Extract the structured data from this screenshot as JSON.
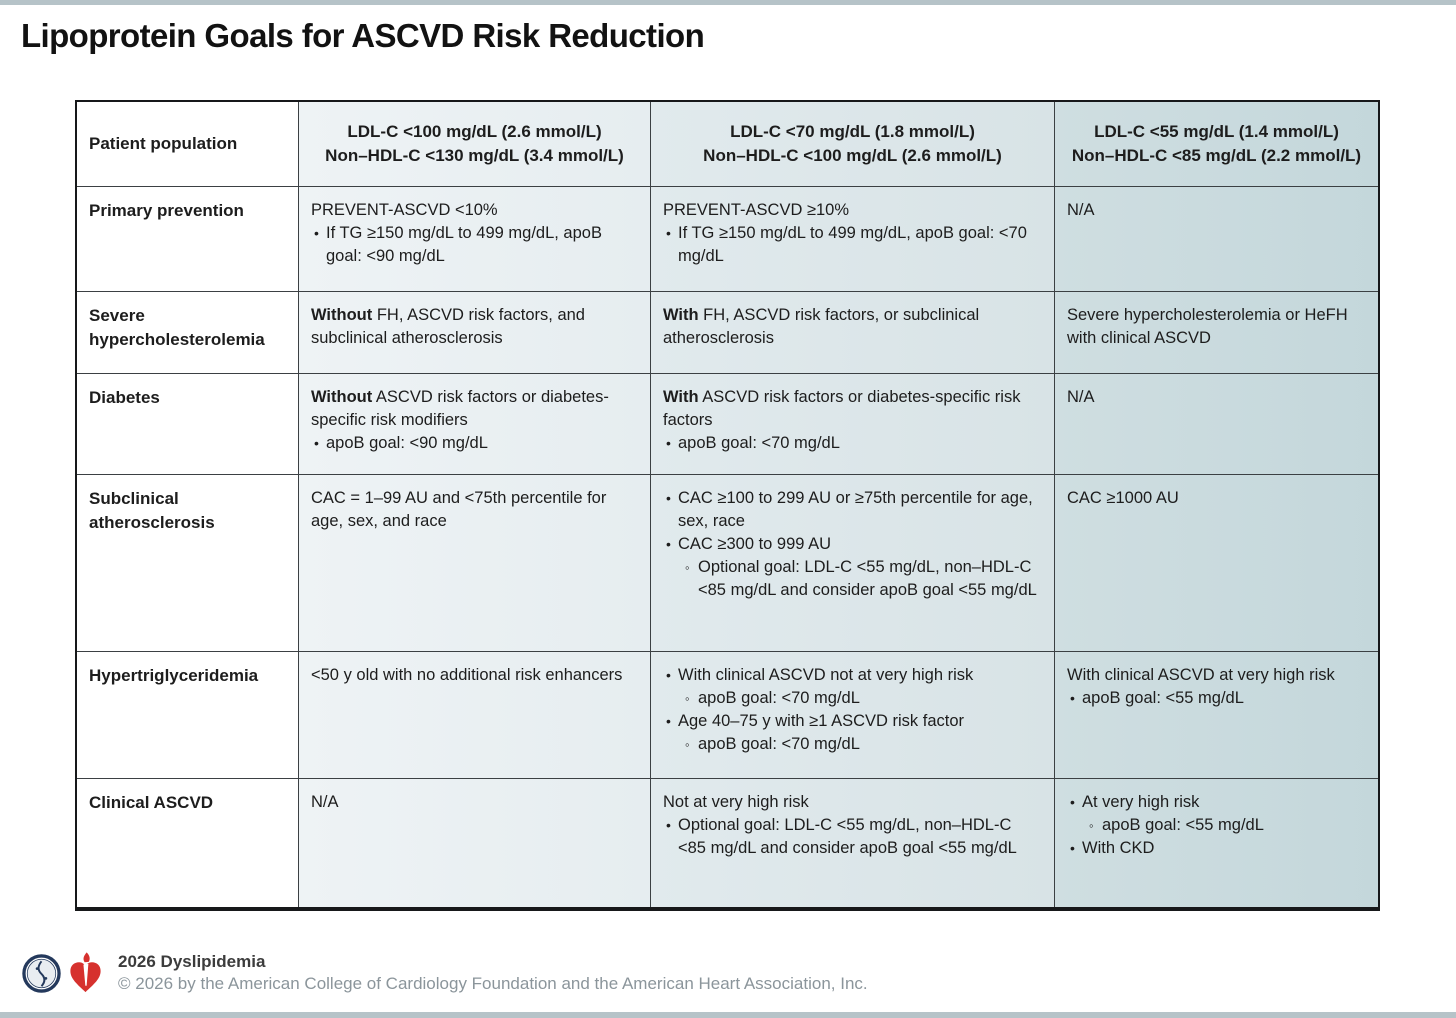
{
  "page": {
    "title": "Lipoprotein Goals for ASCVD Risk Reduction"
  },
  "table": {
    "header": {
      "patient_population": "Patient population",
      "goal_columns": [
        {
          "line1": "LDL-C <100 mg/dL (2.6 mmol/L)",
          "line2": "Non–HDL-C <130 mg/dL (3.4 mmol/L)"
        },
        {
          "line1": "LDL-C <70 mg/dL (1.8 mmol/L)",
          "line2": "Non–HDL-C <100 mg/dL (2.6 mmol/L)"
        },
        {
          "line1": "LDL-C <55 mg/dL (1.4 mmol/L)",
          "line2": "Non–HDL-C <85 mg/dL (2.2 mmol/L)"
        }
      ]
    },
    "rows": [
      {
        "label": "Primary prevention",
        "cells": [
          {
            "lines": [
              {
                "style": "plain",
                "text": "PREVENT-ASCVD <10%"
              },
              {
                "style": "bullet",
                "text": "If TG ≥150 mg/dL to 499 mg/dL, apoB goal: <90 mg/dL"
              }
            ]
          },
          {
            "lines": [
              {
                "style": "plain",
                "text": "PREVENT-ASCVD ≥10%"
              },
              {
                "style": "bullet",
                "text": "If TG ≥150 mg/dL to 499 mg/dL, apoB goal: <70 mg/dL"
              }
            ]
          },
          {
            "lines": [
              {
                "style": "plain",
                "text": "N/A"
              }
            ]
          }
        ]
      },
      {
        "label": "Severe hypercholesterolemia",
        "cells": [
          {
            "lines": [
              {
                "style": "plain",
                "bold": "Without",
                "text": " FH, ASCVD risk factors, and subclinical atherosclerosis"
              }
            ]
          },
          {
            "lines": [
              {
                "style": "plain",
                "bold": "With",
                "text": " FH, ASCVD risk factors, or subclinical atherosclerosis"
              }
            ]
          },
          {
            "lines": [
              {
                "style": "plain",
                "text": "Severe hypercholesterolemia or HeFH with clinical ASCVD"
              }
            ]
          }
        ]
      },
      {
        "label": "Diabetes",
        "cells": [
          {
            "lines": [
              {
                "style": "plain",
                "bold": "Without",
                "text": " ASCVD risk factors or diabetes-specific risk modifiers"
              },
              {
                "style": "bullet",
                "text": "apoB goal: <90 mg/dL"
              }
            ]
          },
          {
            "lines": [
              {
                "style": "plain",
                "bold": "With",
                "text": " ASCVD risk factors or diabetes-specific risk factors"
              },
              {
                "style": "bullet",
                "text": "apoB goal: <70 mg/dL"
              }
            ]
          },
          {
            "lines": [
              {
                "style": "plain",
                "text": "N/A"
              }
            ]
          }
        ]
      },
      {
        "label": "Subclinical atherosclerosis",
        "cells": [
          {
            "lines": [
              {
                "style": "plain",
                "text": "CAC = 1–99 AU and <75th percentile for age, sex, and race"
              }
            ]
          },
          {
            "lines": [
              {
                "style": "bullet",
                "text": "CAC ≥100 to 299 AU or ≥75th percentile for age, sex, race"
              },
              {
                "style": "bullet",
                "text": "CAC ≥300 to 999 AU"
              },
              {
                "style": "sub",
                "text": "Optional goal: LDL-C <55 mg/dL, non–HDL-C <85 mg/dL and consider apoB goal <55 mg/dL"
              }
            ]
          },
          {
            "lines": [
              {
                "style": "plain",
                "text": "CAC ≥1000 AU"
              }
            ]
          }
        ]
      },
      {
        "label": "Hypertriglyceridemia",
        "cells": [
          {
            "lines": [
              {
                "style": "plain",
                "text": "<50 y old with no additional risk enhancers"
              }
            ]
          },
          {
            "lines": [
              {
                "style": "bullet",
                "text": "With clinical ASCVD not at very high risk"
              },
              {
                "style": "sub",
                "text": "apoB goal: <70 mg/dL"
              },
              {
                "style": "bullet",
                "text": "Age 40–75 y with ≥1 ASCVD risk factor"
              },
              {
                "style": "sub",
                "text": "apoB goal: <70 mg/dL"
              }
            ]
          },
          {
            "lines": [
              {
                "style": "plain",
                "text": "With clinical ASCVD at very high risk"
              },
              {
                "style": "bullet",
                "text": "apoB goal: <55 mg/dL"
              }
            ]
          }
        ]
      },
      {
        "label": "Clinical ASCVD",
        "cells": [
          {
            "lines": [
              {
                "style": "plain",
                "text": "N/A"
              }
            ]
          },
          {
            "lines": [
              {
                "style": "plain",
                "text": "Not at very high risk"
              },
              {
                "style": "bullet",
                "text": "Optional goal: LDL-C <55 mg/dL, non–HDL-C <85 mg/dL and consider apoB goal <55 mg/dL"
              }
            ]
          },
          {
            "lines": [
              {
                "style": "bullet",
                "text": "At very high risk"
              },
              {
                "style": "sub",
                "text": "apoB goal: <55 mg/dL"
              },
              {
                "style": "bullet",
                "text": "With CKD"
              }
            ]
          }
        ]
      }
    ]
  },
  "footer": {
    "program": "2026 Dyslipidemia",
    "copyright": "© 2026 by the American College of Cardiology Foundation and the American Heart Association, Inc.",
    "logos": [
      "acc-logo",
      "aha-heart-torch-logo"
    ]
  },
  "colors": {
    "band": "#b6c3c8",
    "goal_column_1": "#eaf0f2",
    "goal_column_2": "#dde6e9",
    "goal_column_3": "#c9dadd",
    "acc_navy": "#24395c",
    "aha_red": "#d6312e",
    "muted_gray": "#8b959b"
  }
}
